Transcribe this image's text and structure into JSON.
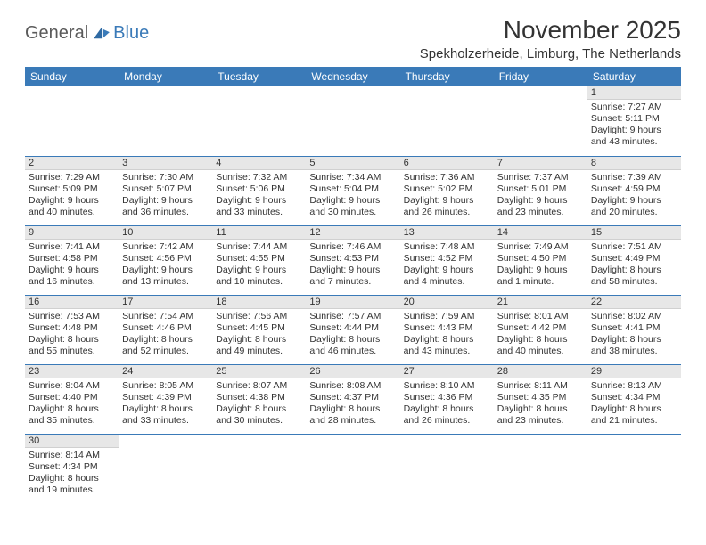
{
  "logo": {
    "text1": "General",
    "text2": "Blue"
  },
  "title": "November 2025",
  "location": "Spekholzerheide, Limburg, The Netherlands",
  "colors": {
    "header_bg": "#3a7ab8",
    "header_text": "#ffffff",
    "daynum_bg": "#e7e7e7",
    "row_border": "#3a7ab8",
    "body_text": "#333333",
    "logo_gray": "#5a5a5a",
    "logo_blue": "#3a7ab8",
    "page_bg": "#ffffff"
  },
  "typography": {
    "title_fontsize": 28,
    "location_fontsize": 15,
    "dayheader_fontsize": 12,
    "daynum_fontsize": 11,
    "cell_fontsize": 10.5
  },
  "day_headers": [
    "Sunday",
    "Monday",
    "Tuesday",
    "Wednesday",
    "Thursday",
    "Friday",
    "Saturday"
  ],
  "weeks": [
    [
      null,
      null,
      null,
      null,
      null,
      null,
      {
        "n": "1",
        "sr": "Sunrise: 7:27 AM",
        "ss": "Sunset: 5:11 PM",
        "dl1": "Daylight: 9 hours",
        "dl2": "and 43 minutes."
      }
    ],
    [
      {
        "n": "2",
        "sr": "Sunrise: 7:29 AM",
        "ss": "Sunset: 5:09 PM",
        "dl1": "Daylight: 9 hours",
        "dl2": "and 40 minutes."
      },
      {
        "n": "3",
        "sr": "Sunrise: 7:30 AM",
        "ss": "Sunset: 5:07 PM",
        "dl1": "Daylight: 9 hours",
        "dl2": "and 36 minutes."
      },
      {
        "n": "4",
        "sr": "Sunrise: 7:32 AM",
        "ss": "Sunset: 5:06 PM",
        "dl1": "Daylight: 9 hours",
        "dl2": "and 33 minutes."
      },
      {
        "n": "5",
        "sr": "Sunrise: 7:34 AM",
        "ss": "Sunset: 5:04 PM",
        "dl1": "Daylight: 9 hours",
        "dl2": "and 30 minutes."
      },
      {
        "n": "6",
        "sr": "Sunrise: 7:36 AM",
        "ss": "Sunset: 5:02 PM",
        "dl1": "Daylight: 9 hours",
        "dl2": "and 26 minutes."
      },
      {
        "n": "7",
        "sr": "Sunrise: 7:37 AM",
        "ss": "Sunset: 5:01 PM",
        "dl1": "Daylight: 9 hours",
        "dl2": "and 23 minutes."
      },
      {
        "n": "8",
        "sr": "Sunrise: 7:39 AM",
        "ss": "Sunset: 4:59 PM",
        "dl1": "Daylight: 9 hours",
        "dl2": "and 20 minutes."
      }
    ],
    [
      {
        "n": "9",
        "sr": "Sunrise: 7:41 AM",
        "ss": "Sunset: 4:58 PM",
        "dl1": "Daylight: 9 hours",
        "dl2": "and 16 minutes."
      },
      {
        "n": "10",
        "sr": "Sunrise: 7:42 AM",
        "ss": "Sunset: 4:56 PM",
        "dl1": "Daylight: 9 hours",
        "dl2": "and 13 minutes."
      },
      {
        "n": "11",
        "sr": "Sunrise: 7:44 AM",
        "ss": "Sunset: 4:55 PM",
        "dl1": "Daylight: 9 hours",
        "dl2": "and 10 minutes."
      },
      {
        "n": "12",
        "sr": "Sunrise: 7:46 AM",
        "ss": "Sunset: 4:53 PM",
        "dl1": "Daylight: 9 hours",
        "dl2": "and 7 minutes."
      },
      {
        "n": "13",
        "sr": "Sunrise: 7:48 AM",
        "ss": "Sunset: 4:52 PM",
        "dl1": "Daylight: 9 hours",
        "dl2": "and 4 minutes."
      },
      {
        "n": "14",
        "sr": "Sunrise: 7:49 AM",
        "ss": "Sunset: 4:50 PM",
        "dl1": "Daylight: 9 hours",
        "dl2": "and 1 minute."
      },
      {
        "n": "15",
        "sr": "Sunrise: 7:51 AM",
        "ss": "Sunset: 4:49 PM",
        "dl1": "Daylight: 8 hours",
        "dl2": "and 58 minutes."
      }
    ],
    [
      {
        "n": "16",
        "sr": "Sunrise: 7:53 AM",
        "ss": "Sunset: 4:48 PM",
        "dl1": "Daylight: 8 hours",
        "dl2": "and 55 minutes."
      },
      {
        "n": "17",
        "sr": "Sunrise: 7:54 AM",
        "ss": "Sunset: 4:46 PM",
        "dl1": "Daylight: 8 hours",
        "dl2": "and 52 minutes."
      },
      {
        "n": "18",
        "sr": "Sunrise: 7:56 AM",
        "ss": "Sunset: 4:45 PM",
        "dl1": "Daylight: 8 hours",
        "dl2": "and 49 minutes."
      },
      {
        "n": "19",
        "sr": "Sunrise: 7:57 AM",
        "ss": "Sunset: 4:44 PM",
        "dl1": "Daylight: 8 hours",
        "dl2": "and 46 minutes."
      },
      {
        "n": "20",
        "sr": "Sunrise: 7:59 AM",
        "ss": "Sunset: 4:43 PM",
        "dl1": "Daylight: 8 hours",
        "dl2": "and 43 minutes."
      },
      {
        "n": "21",
        "sr": "Sunrise: 8:01 AM",
        "ss": "Sunset: 4:42 PM",
        "dl1": "Daylight: 8 hours",
        "dl2": "and 40 minutes."
      },
      {
        "n": "22",
        "sr": "Sunrise: 8:02 AM",
        "ss": "Sunset: 4:41 PM",
        "dl1": "Daylight: 8 hours",
        "dl2": "and 38 minutes."
      }
    ],
    [
      {
        "n": "23",
        "sr": "Sunrise: 8:04 AM",
        "ss": "Sunset: 4:40 PM",
        "dl1": "Daylight: 8 hours",
        "dl2": "and 35 minutes."
      },
      {
        "n": "24",
        "sr": "Sunrise: 8:05 AM",
        "ss": "Sunset: 4:39 PM",
        "dl1": "Daylight: 8 hours",
        "dl2": "and 33 minutes."
      },
      {
        "n": "25",
        "sr": "Sunrise: 8:07 AM",
        "ss": "Sunset: 4:38 PM",
        "dl1": "Daylight: 8 hours",
        "dl2": "and 30 minutes."
      },
      {
        "n": "26",
        "sr": "Sunrise: 8:08 AM",
        "ss": "Sunset: 4:37 PM",
        "dl1": "Daylight: 8 hours",
        "dl2": "and 28 minutes."
      },
      {
        "n": "27",
        "sr": "Sunrise: 8:10 AM",
        "ss": "Sunset: 4:36 PM",
        "dl1": "Daylight: 8 hours",
        "dl2": "and 26 minutes."
      },
      {
        "n": "28",
        "sr": "Sunrise: 8:11 AM",
        "ss": "Sunset: 4:35 PM",
        "dl1": "Daylight: 8 hours",
        "dl2": "and 23 minutes."
      },
      {
        "n": "29",
        "sr": "Sunrise: 8:13 AM",
        "ss": "Sunset: 4:34 PM",
        "dl1": "Daylight: 8 hours",
        "dl2": "and 21 minutes."
      }
    ],
    [
      {
        "n": "30",
        "sr": "Sunrise: 8:14 AM",
        "ss": "Sunset: 4:34 PM",
        "dl1": "Daylight: 8 hours",
        "dl2": "and 19 minutes."
      },
      null,
      null,
      null,
      null,
      null,
      null
    ]
  ]
}
